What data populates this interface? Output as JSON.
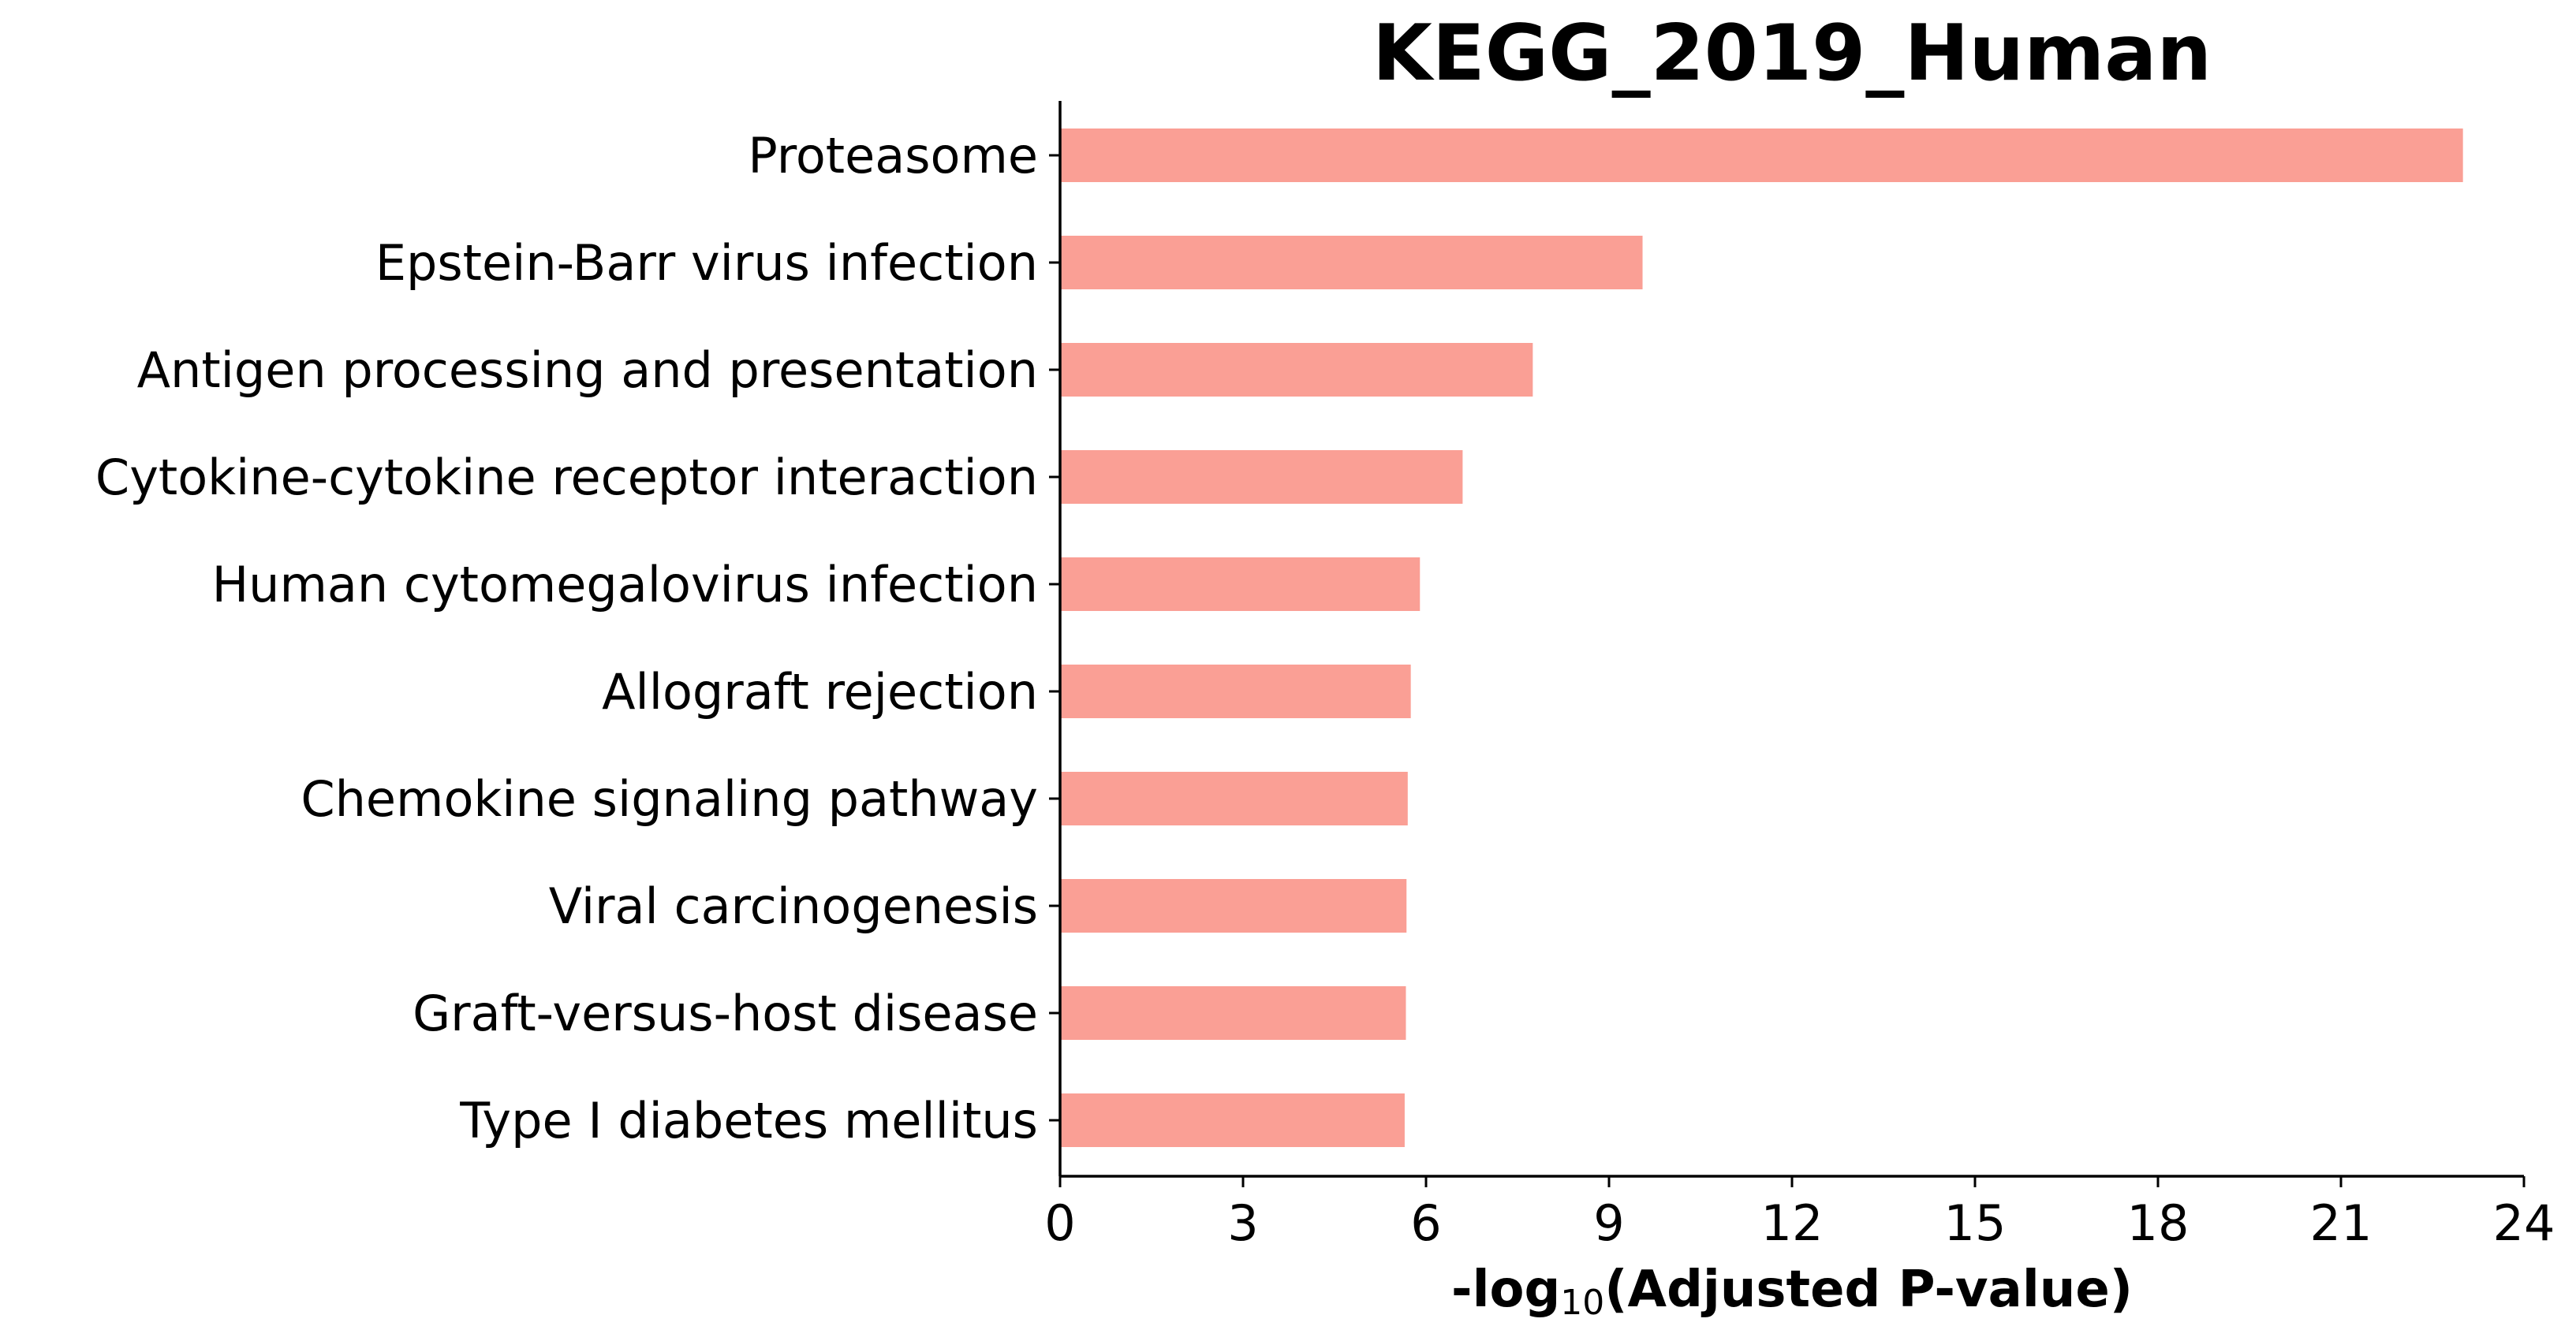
{
  "chart_data": {
    "type": "bar",
    "orientation": "horizontal",
    "title": "KEGG_2019_Human",
    "xlabel": {
      "prefix": "-log",
      "subscript": "10",
      "suffix": "(Adjusted P-value)"
    },
    "ylabel": "",
    "xlim": [
      0,
      24
    ],
    "xticks": [
      "0",
      "3",
      "6",
      "9",
      "12",
      "15",
      "18",
      "21",
      "24"
    ],
    "grid": false,
    "legend": "none",
    "bar_color": "#fa9f95",
    "categories": [
      "Proteasome",
      "Epstein-Barr virus infection",
      "Antigen processing and presentation",
      "Cytokine-cytokine receptor interaction",
      "Human cytomegalovirus infection",
      "Allograft rejection",
      "Chemokine signaling pathway",
      "Viral carcinogenesis",
      "Graft-versus-host disease",
      "Type I diabetes mellitus"
    ],
    "values": [
      23.0,
      9.55,
      7.75,
      6.6,
      5.9,
      5.75,
      5.7,
      5.68,
      5.67,
      5.65
    ]
  }
}
